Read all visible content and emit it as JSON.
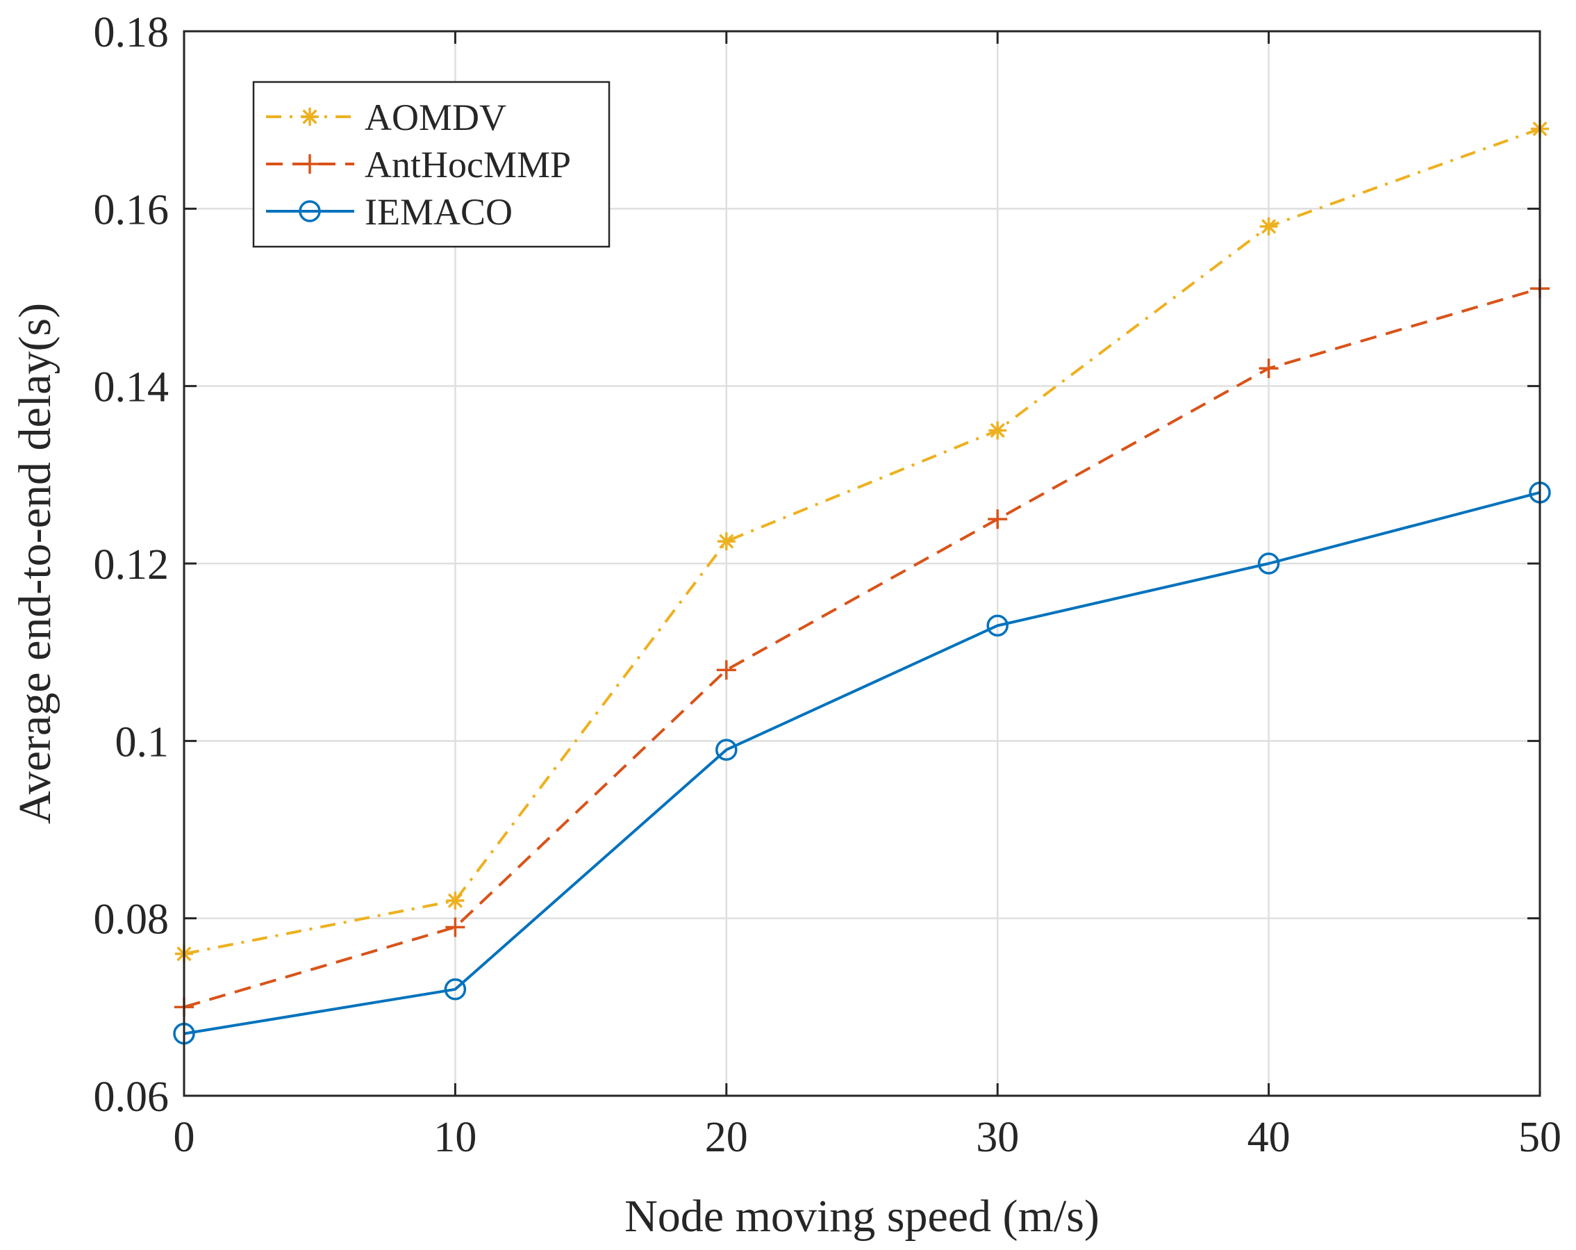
{
  "chart_data": {
    "type": "line",
    "title": "",
    "xlabel": "Node moving speed (m/s)",
    "ylabel": "Average end-to-end delay(s)",
    "x": [
      0,
      10,
      20,
      30,
      40,
      50
    ],
    "xlim": [
      0,
      50
    ],
    "ylim": [
      0.06,
      0.18
    ],
    "xticks": [
      0,
      10,
      20,
      30,
      40,
      50
    ],
    "xtick_labels": [
      "0",
      "10",
      "20",
      "30",
      "40",
      "50"
    ],
    "yticks": [
      0.06,
      0.08,
      0.1,
      0.12,
      0.14,
      0.16,
      0.18
    ],
    "ytick_labels": [
      "0.06",
      "0.08",
      "0.1",
      "0.12",
      "0.14",
      "0.16",
      "0.18"
    ],
    "grid": true,
    "legend_position": "top-left",
    "series": [
      {
        "name": "AOMDV",
        "color": "#EDB120",
        "line_style": "dash-dot",
        "marker": "asterisk",
        "values": [
          0.076,
          0.082,
          0.1225,
          0.135,
          0.158,
          0.169
        ]
      },
      {
        "name": "AntHocMMP",
        "color": "#D95319",
        "line_style": "dashed",
        "marker": "plus",
        "values": [
          0.07,
          0.079,
          0.108,
          0.125,
          0.142,
          0.151
        ]
      },
      {
        "name": "IEMACO",
        "color": "#0072BD",
        "line_style": "solid",
        "marker": "circle",
        "values": [
          0.067,
          0.072,
          0.099,
          0.113,
          0.12,
          0.128
        ]
      }
    ]
  }
}
